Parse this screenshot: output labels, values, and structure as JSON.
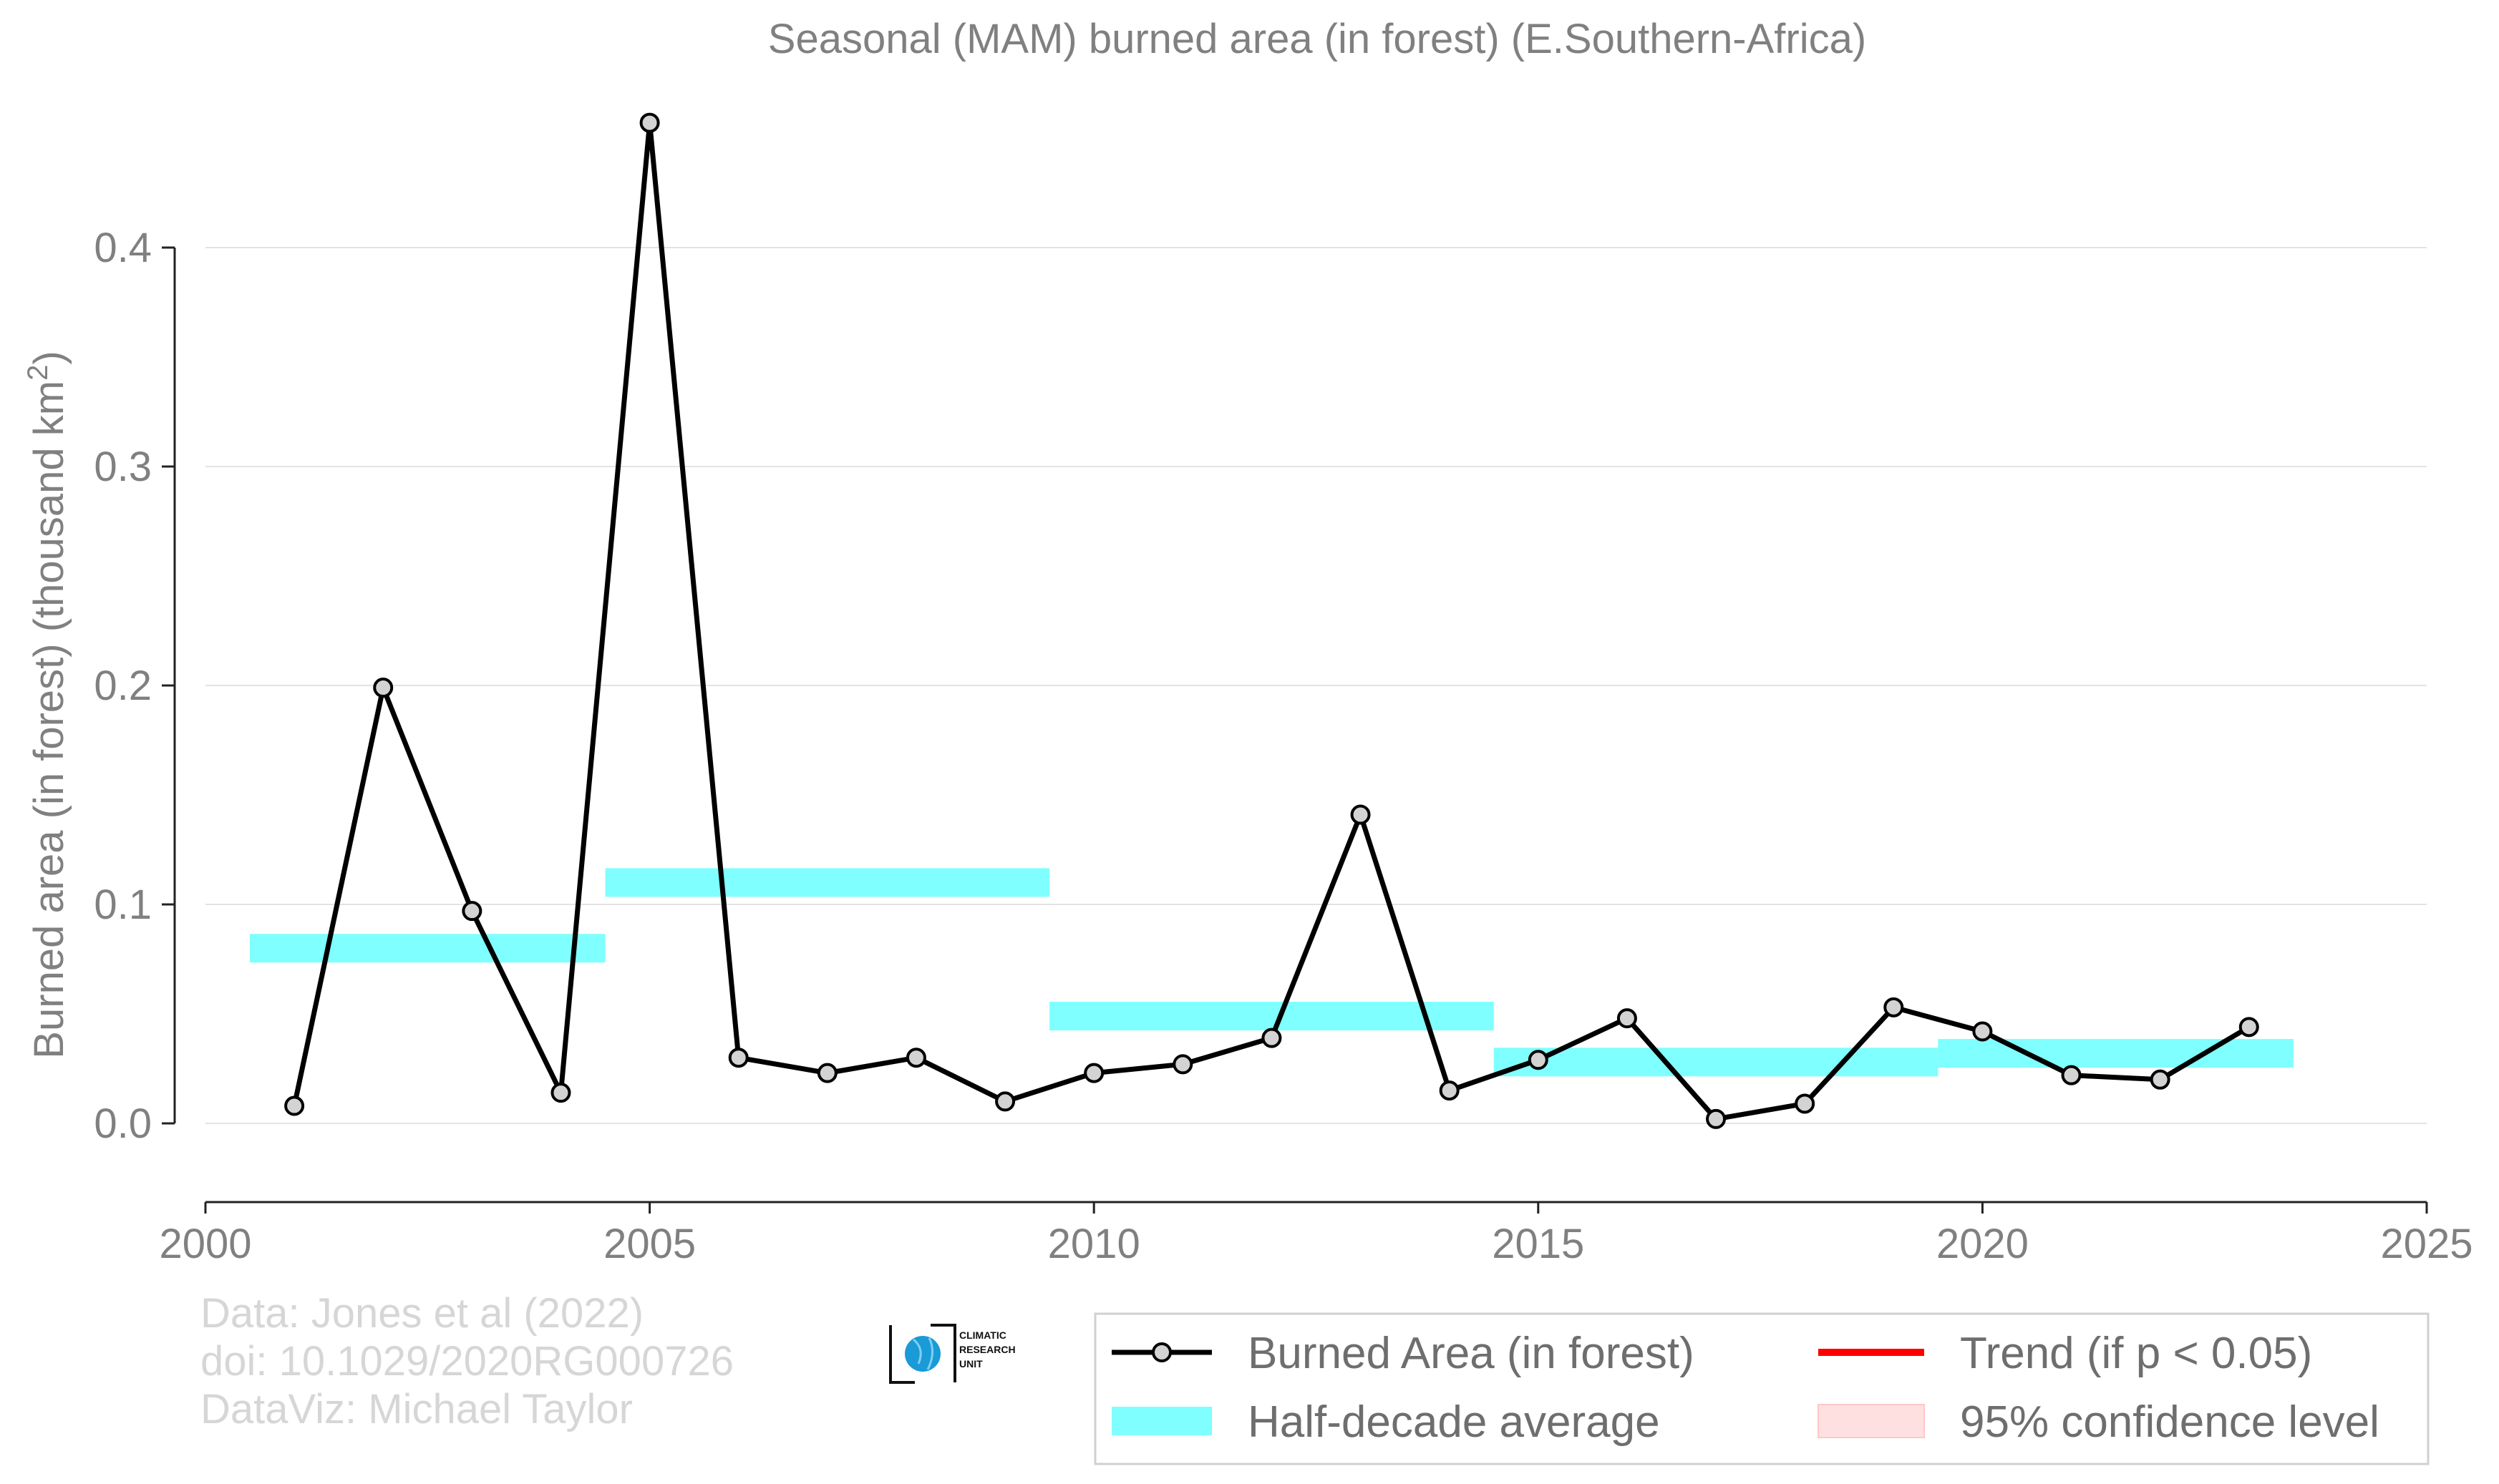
{
  "chart_data": {
    "type": "line",
    "title": "Seasonal (MAM) burned area (in forest) (E.Southern-Africa)",
    "ylabel": "Burned area (in forest) (thousand km",
    "ylabel_sup": "2",
    "ylabel_close": ")",
    "xlabel": "",
    "xlim": [
      2000,
      2025
    ],
    "ylim": [
      -0.035,
      0.46
    ],
    "x_ticks": [
      2000,
      2005,
      2010,
      2015,
      2020,
      2025
    ],
    "x_tick_labels": [
      "2000",
      "2005",
      "2010",
      "2015",
      "2020",
      "2025"
    ],
    "y_ticks": [
      0.0,
      0.1,
      0.2,
      0.3,
      0.4
    ],
    "y_tick_labels": [
      "0.0",
      "0.1",
      "0.2",
      "0.3",
      "0.4"
    ],
    "grid": "horizontal",
    "legend_position": "bottom-right",
    "series": [
      {
        "name": "Burned Area (in forest)",
        "kind": "line-with-markers",
        "color": "#000000",
        "marker_fill": "#d3d3d3",
        "x": [
          2001,
          2002,
          2003,
          2004,
          2005,
          2006,
          2007,
          2008,
          2009,
          2010,
          2011,
          2012,
          2013,
          2014,
          2015,
          2016,
          2017,
          2018,
          2019,
          2020,
          2021,
          2022,
          2023
        ],
        "y": [
          0.008,
          0.199,
          0.097,
          0.014,
          0.457,
          0.03,
          0.023,
          0.03,
          0.01,
          0.023,
          0.027,
          0.039,
          0.141,
          0.015,
          0.029,
          0.048,
          0.002,
          0.009,
          0.053,
          0.042,
          0.022,
          0.02,
          0.044
        ]
      },
      {
        "name": "Half-decade average",
        "kind": "segments",
        "color": "#7fffff",
        "segments": [
          {
            "x0": 2000.5,
            "x1": 2004.5,
            "y": 0.08
          },
          {
            "x0": 2004.5,
            "x1": 2009.5,
            "y": 0.11
          },
          {
            "x0": 2009.5,
            "x1": 2014.5,
            "y": 0.049
          },
          {
            "x0": 2014.5,
            "x1": 2019.5,
            "y": 0.028
          },
          {
            "x0": 2019.5,
            "x1": 2023.5,
            "y": 0.032
          }
        ]
      }
    ],
    "legend": [
      {
        "label": "Burned Area (in forest)",
        "swatch": "line-marker",
        "color": "#000000"
      },
      {
        "label": "Trend (if p < 0.05)",
        "swatch": "line",
        "color": "#ff0000"
      },
      {
        "label": "Half-decade average",
        "swatch": "band",
        "color": "#7fffff"
      },
      {
        "label": "95% confidence level",
        "swatch": "band",
        "color": "#ffe0e0"
      }
    ]
  },
  "credits": [
    "Data: Jones et al (2022)",
    "doi: 10.1029/2020RG000726",
    "DataViz: Michael Taylor"
  ],
  "logo": {
    "lines": [
      "CLIMATIC",
      "RESEARCH",
      "UNIT"
    ],
    "icon": "globe-icon"
  }
}
